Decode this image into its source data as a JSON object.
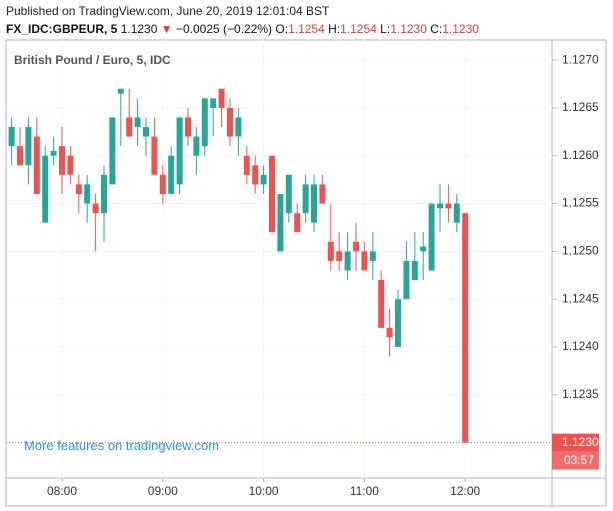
{
  "header": {
    "published": "Published on TradingView.com, June 20, 2019 12:01:04 BST",
    "symbol": "FX_IDC:GBPEUR, 5",
    "last": "1.1230",
    "arrow": "▼",
    "change": "−0.0025 (−0.22%)",
    "ohlc": [
      {
        "label": "O:",
        "value": "1.1254"
      },
      {
        "label": "H:",
        "value": "1.1254"
      },
      {
        "label": "L:",
        "value": "1.1230"
      },
      {
        "label": "C:",
        "value": "1.1230"
      }
    ]
  },
  "chart_data": {
    "type": "candlestick",
    "title": "British Pound / Euro, 5, IDC",
    "watermark": "More features on tradingview.com",
    "x": [
      "07:30",
      "07:35",
      "07:40",
      "07:45",
      "07:50",
      "07:55",
      "08:00",
      "08:05",
      "08:10",
      "08:15",
      "08:20",
      "08:25",
      "08:30",
      "08:35",
      "08:40",
      "08:45",
      "08:50",
      "08:55",
      "09:00",
      "09:05",
      "09:10",
      "09:15",
      "09:20",
      "09:25",
      "09:30",
      "09:35",
      "09:40",
      "09:45",
      "09:50",
      "09:55",
      "10:00",
      "10:05",
      "10:10",
      "10:15",
      "10:20",
      "10:25",
      "10:30",
      "10:35",
      "10:40",
      "10:45",
      "10:50",
      "10:55",
      "11:00",
      "11:05",
      "11:10",
      "11:15",
      "11:20",
      "11:25",
      "11:30",
      "11:35",
      "11:40",
      "11:45",
      "11:50",
      "11:55",
      "12:00"
    ],
    "open": [
      1.1261,
      1.1261,
      1.1259,
      1.1262,
      1.1253,
      1.126,
      1.1261,
      1.126,
      1.1257,
      1.1255,
      1.1255,
      1.1254,
      1.1257,
      1.12665,
      1.1264,
      1.1263,
      1.1262,
      1.1262,
      1.1258,
      1.1256,
      1.1257,
      1.1264,
      1.126,
      1.1261,
      1.1265,
      1.1267,
      1.1265,
      1.1262,
      1.126,
      1.1259,
      1.1257,
      1.126,
      1.125,
      1.1254,
      1.1254,
      1.1254,
      1.1253,
      1.1257,
      1.1251,
      1.125,
      1.1248,
      1.1251,
      1.125,
      1.1249,
      1.1247,
      1.1242,
      1.124,
      1.1245,
      1.1247,
      1.125,
      1.1248,
      1.12545,
      1.1255,
      1.1253,
      1.1254
    ],
    "high": [
      1.1264,
      1.1263,
      1.1264,
      1.1264,
      1.1261,
      1.1262,
      1.1263,
      1.1261,
      1.1258,
      1.1258,
      1.1256,
      1.1259,
      1.1264,
      1.1267,
      1.1267,
      1.1266,
      1.1264,
      1.1264,
      1.1259,
      1.1261,
      1.1264,
      1.1265,
      1.1263,
      1.1266,
      1.1266,
      1.1267,
      1.1266,
      1.1265,
      1.1261,
      1.126,
      1.1259,
      1.126,
      1.1256,
      1.1258,
      1.1255,
      1.1258,
      1.1258,
      1.1258,
      1.1255,
      1.1252,
      1.1252,
      1.1253,
      1.1251,
      1.1252,
      1.1248,
      1.1244,
      1.1246,
      1.1251,
      1.1252,
      1.1252,
      1.1255,
      1.1257,
      1.1257,
      1.1256,
      1.1254
    ],
    "low": [
      1.1259,
      1.1259,
      1.1257,
      1.1256,
      1.1253,
      1.1259,
      1.1256,
      1.1257,
      1.1254,
      1.1253,
      1.125,
      1.1251,
      1.1257,
      1.1261,
      1.1262,
      1.1261,
      1.126,
      1.1258,
      1.1255,
      1.1256,
      1.1256,
      1.1261,
      1.1258,
      1.126,
      1.1262,
      1.1263,
      1.1261,
      1.126,
      1.1257,
      1.1256,
      1.1256,
      1.1252,
      1.125,
      1.1253,
      1.1252,
      1.1253,
      1.1252,
      1.1255,
      1.1248,
      1.1248,
      1.1247,
      1.1248,
      1.1248,
      1.1247,
      1.1242,
      1.1239,
      1.124,
      1.1245,
      1.1247,
      1.1247,
      1.1248,
      1.1252,
      1.1253,
      1.1252,
      1.123
    ],
    "close": [
      1.1263,
      1.1259,
      1.1263,
      1.1256,
      1.126,
      1.12605,
      1.1258,
      1.1258,
      1.1256,
      1.1257,
      1.1254,
      1.1258,
      1.1264,
      1.1267,
      1.1262,
      1.1264,
      1.1263,
      1.1258,
      1.1256,
      1.126,
      1.1264,
      1.1262,
      1.1262,
      1.1266,
      1.1266,
      1.1265,
      1.1262,
      1.1264,
      1.1258,
      1.1257,
      1.1258,
      1.1252,
      1.1256,
      1.1258,
      1.1252,
      1.1257,
      1.1257,
      1.1255,
      1.1249,
      1.1249,
      1.125,
      1.125,
      1.1248,
      1.125,
      1.1242,
      1.1241,
      1.1245,
      1.1249,
      1.1249,
      1.12505,
      1.1255,
      1.1255,
      1.12545,
      1.1255,
      1.123
    ],
    "up_color": "#26a69a",
    "down_color": "#ef5350",
    "watermark_color": "#2196f3",
    "ylim": [
      1.12263,
      1.12721
    ],
    "yticks": [
      1.1235,
      {
        "value": 1.124,
        "label": "1.1240"
      },
      1.1245,
      {
        "value": 1.125,
        "label": "1.1250"
      },
      1.1255,
      {
        "value": 1.126,
        "label": "1.1260"
      },
      1.1265,
      {
        "value": 1.127,
        "label": "1.1270"
      }
    ],
    "xticks": [
      "08:00",
      "09:00",
      "10:00",
      "11:00",
      "12:00"
    ],
    "last_price": {
      "value": 1.123,
      "label": "1.1230"
    },
    "countdown": "03:57",
    "grid": true
  }
}
